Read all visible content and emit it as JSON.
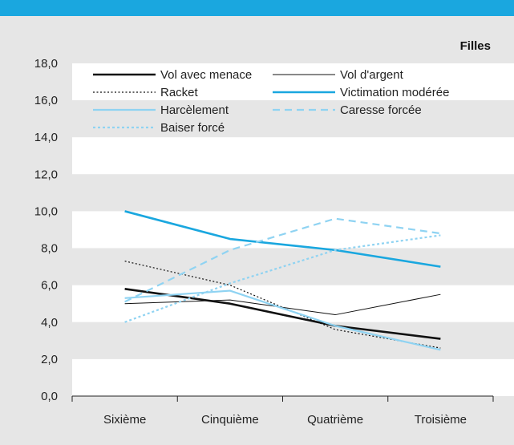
{
  "chart_data": {
    "type": "line",
    "title": "Filles",
    "xlabel": "",
    "ylabel": "",
    "ylim": [
      0,
      18
    ],
    "yticks": [
      "0,0",
      "2,0",
      "4,0",
      "6,0",
      "8,0",
      "10,0",
      "12,0",
      "14,0",
      "16,0",
      "18,0"
    ],
    "categories": [
      "Sixième",
      "Cinquième",
      "Quatrième",
      "Troisième"
    ],
    "grid": "alternating horizontal bands",
    "legend_placement": "top",
    "series": [
      {
        "name": "Vol avec menace",
        "values": [
          5.8,
          5.0,
          3.8,
          3.1
        ],
        "color": "#111111",
        "style": "solid-thick"
      },
      {
        "name": "Vol d'argent",
        "values": [
          5.0,
          5.2,
          4.4,
          5.5
        ],
        "color": "#111111",
        "style": "solid-thin"
      },
      {
        "name": "Racket",
        "values": [
          7.3,
          6.0,
          3.6,
          2.6
        ],
        "color": "#111111",
        "style": "dotted"
      },
      {
        "name": "Victimation modérée",
        "values": [
          10.0,
          8.5,
          7.9,
          7.0
        ],
        "color": "#1aa7df",
        "style": "solid-thick"
      },
      {
        "name": "Harcèlement",
        "values": [
          5.3,
          5.7,
          3.8,
          2.5
        ],
        "color": "#8fd3f2",
        "style": "solid-medium"
      },
      {
        "name": "Caresse forcée",
        "values": [
          5.1,
          7.9,
          9.6,
          8.8
        ],
        "color": "#8fd3f2",
        "style": "dashed"
      },
      {
        "name": "Baiser forcé",
        "values": [
          4.0,
          6.1,
          7.9,
          8.7
        ],
        "color": "#8fd3f2",
        "style": "dotted-medium"
      }
    ],
    "colors": {
      "top_bar": "#1aa7df",
      "band_light": "#ffffff",
      "band_dark": "#e6e6e6"
    }
  }
}
